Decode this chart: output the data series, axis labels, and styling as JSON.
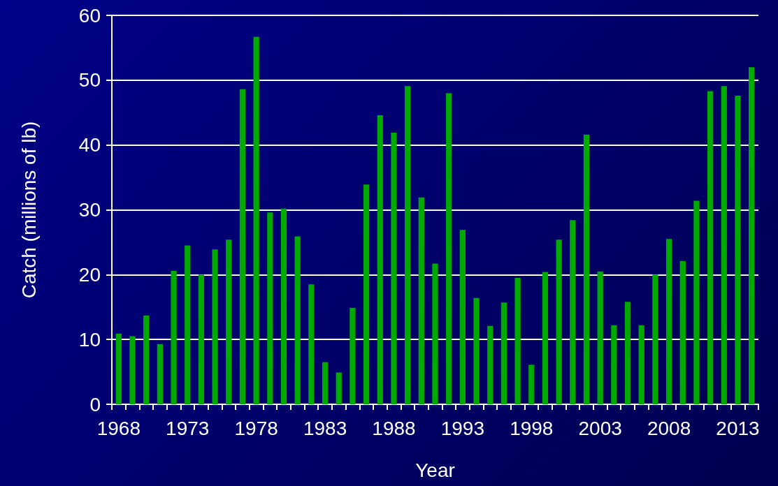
{
  "chart_data": {
    "type": "bar",
    "xlabel": "Year",
    "ylabel": "Catch (millions of lb)",
    "categories": [
      "1968",
      null,
      null,
      null,
      null,
      "1973",
      null,
      null,
      null,
      null,
      "1978",
      null,
      null,
      null,
      null,
      "1983",
      null,
      null,
      null,
      null,
      "1988",
      null,
      null,
      null,
      null,
      "1993",
      null,
      null,
      null,
      null,
      "1998",
      null,
      null,
      null,
      null,
      "2003",
      null,
      null,
      null,
      null,
      "2008",
      null,
      null,
      null,
      null,
      "2013",
      null
    ],
    "values": [
      10.9,
      10.5,
      13.7,
      9.3,
      20.6,
      24.5,
      20.0,
      23.9,
      25.4,
      48.6,
      56.7,
      29.6,
      30.2,
      25.9,
      18.5,
      6.5,
      4.9,
      14.9,
      33.9,
      44.6,
      41.9,
      49.1,
      31.9,
      21.7,
      48.0,
      26.9,
      16.4,
      12.1,
      15.7,
      19.5,
      6.1,
      20.4,
      25.4,
      28.4,
      41.6,
      20.5,
      12.2,
      15.8,
      12.2,
      20.0,
      25.5,
      22.1,
      31.4,
      48.3,
      49.1,
      47.6,
      52.0
    ],
    "color": "#00aa00",
    "ylim": [
      0,
      60
    ],
    "yticks": [
      0,
      10,
      20,
      30,
      40,
      50,
      60
    ],
    "grid": "y"
  }
}
